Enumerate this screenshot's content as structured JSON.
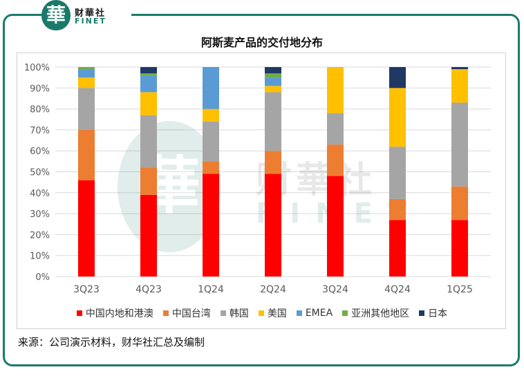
{
  "logo": {
    "char": "華",
    "cn": "财華社",
    "en": "FINET"
  },
  "watermark": {
    "char": "華",
    "cn": "财華社",
    "en": "FINET"
  },
  "source": "来源：公司演示材料，财华社汇总及编制",
  "chart_data": {
    "type": "bar",
    "stacked": true,
    "title": "阿斯麦产品的交付地分布",
    "categories": [
      "3Q23",
      "4Q23",
      "1Q24",
      "2Q24",
      "3Q24",
      "4Q24",
      "1Q25"
    ],
    "ylim": [
      0,
      100
    ],
    "yticks": [
      "0%",
      "10%",
      "20%",
      "30%",
      "40%",
      "50%",
      "60%",
      "70%",
      "80%",
      "90%",
      "100%"
    ],
    "grid": true,
    "legend_position": "bottom",
    "series": [
      {
        "name": "中国内地和港澳",
        "color": "#ff0000",
        "values": [
          46,
          39,
          49,
          49,
          48,
          27,
          27
        ]
      },
      {
        "name": "中国台湾",
        "color": "#ed7d31",
        "values": [
          24,
          13,
          6,
          11,
          15,
          10,
          16
        ]
      },
      {
        "name": "韩国",
        "color": "#a5a5a5",
        "values": [
          20,
          25,
          19,
          28,
          15,
          25,
          40
        ]
      },
      {
        "name": "美国",
        "color": "#ffc000",
        "values": [
          5,
          11,
          6,
          3,
          22,
          28,
          16
        ]
      },
      {
        "name": "EMEA",
        "color": "#5b9bd5",
        "values": [
          4,
          8,
          20,
          4,
          0,
          0,
          0
        ]
      },
      {
        "name": "亚洲其他地区",
        "color": "#70ad47",
        "values": [
          1,
          1,
          0,
          2,
          0,
          0,
          0
        ]
      },
      {
        "name": "日本",
        "color": "#203864",
        "values": [
          0,
          3,
          0,
          3,
          0,
          10,
          1
        ]
      }
    ]
  }
}
